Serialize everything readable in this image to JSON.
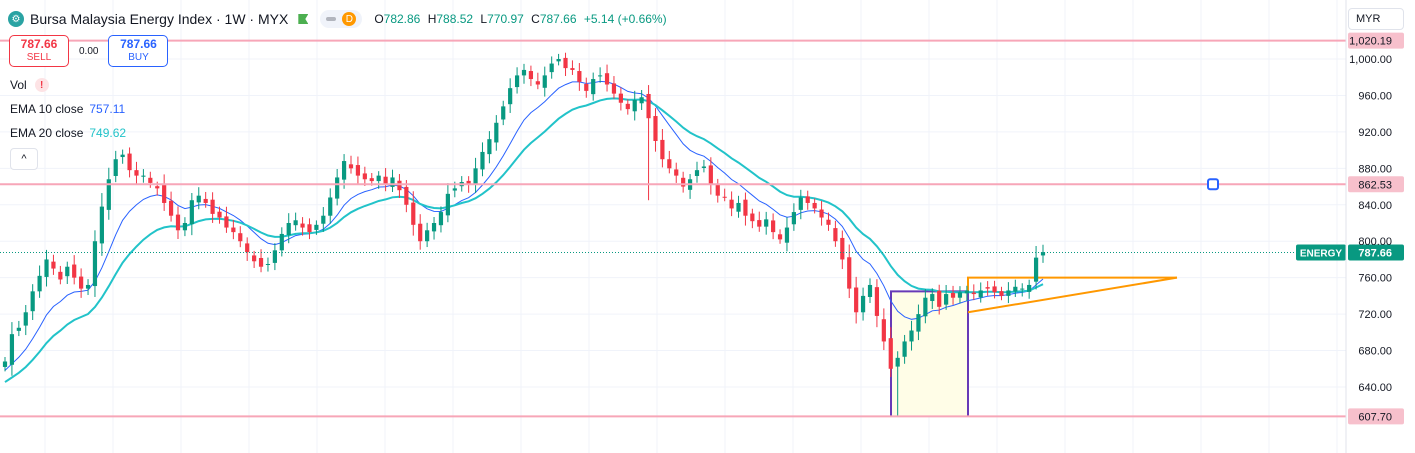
{
  "header": {
    "symbol_glyph": "⚙",
    "title": "Bursa Malaysia Energy Index · 1W · MYX",
    "pill_letter": "D",
    "open_label": "O",
    "open": "782.86",
    "high_label": "H",
    "high": "788.52",
    "low_label": "L",
    "low": "770.97",
    "close_label": "C",
    "close": "787.66",
    "change": "+5.14 (+0.66%)"
  },
  "trade": {
    "sell_price": "787.66",
    "sell_label": "SELL",
    "spread": "0.00",
    "buy_price": "787.66",
    "buy_label": "BUY"
  },
  "indicators": {
    "vol_label": "Vol",
    "vol_warning": "!",
    "ema10_label": "EMA 10 close",
    "ema10_value": "757.11",
    "ema20_label": "EMA 20 close",
    "ema20_value": "749.62",
    "collapse_glyph": "^"
  },
  "currency": "MYR",
  "colors": {
    "up": "#089981",
    "down": "#f23645",
    "ema10": "#2962ff",
    "ema20": "#22c3c9",
    "hline": "#f7a6b8",
    "triangle": "#ff9800",
    "box": "#673ab7",
    "box_fill": "#fffde7",
    "price_line": "#089981"
  },
  "chart_data": {
    "type": "candlestick",
    "yaxis_ticks": [
      640,
      680,
      720,
      760,
      800,
      840,
      880,
      920,
      960,
      1000
    ],
    "yaxis_tick_labels": [
      "640.00",
      "680.00",
      "720.00",
      "760.00",
      "800.00",
      "840.00",
      "880.00",
      "920.00",
      "960.00",
      "1,000.00"
    ],
    "ylim": [
      590,
      1035
    ],
    "horizontal_lines": [
      {
        "value": 1020.19,
        "label": "1,020.19"
      },
      {
        "value": 862.53,
        "label": "862.53"
      },
      {
        "value": 607.7,
        "label": "607.70"
      }
    ],
    "last_price": {
      "name": "ENERGY",
      "value": "787.66"
    },
    "closes": [
      668,
      698,
      705,
      722,
      745,
      762,
      780,
      770,
      758,
      772,
      760,
      748,
      752,
      800,
      838,
      868,
      890,
      895,
      878,
      872,
      872,
      864,
      858,
      842,
      828,
      812,
      820,
      845,
      850,
      842,
      830,
      826,
      815,
      810,
      800,
      788,
      778,
      772,
      775,
      790,
      808,
      820,
      823,
      815,
      810,
      818,
      828,
      848,
      870,
      888,
      880,
      872,
      868,
      866,
      872,
      862,
      870,
      856,
      840,
      818,
      800,
      812,
      820,
      832,
      852,
      858,
      865,
      862,
      880,
      898,
      912,
      930,
      948,
      968,
      982,
      988,
      978,
      972,
      982,
      995,
      1000,
      990,
      988,
      975,
      965,
      978,
      982,
      972,
      962,
      952,
      945,
      955,
      958,
      935,
      910,
      890,
      880,
      872,
      860,
      868,
      878,
      882,
      862,
      850,
      848,
      836,
      842,
      828,
      822,
      816,
      824,
      810,
      802,
      815,
      832,
      848,
      842,
      836,
      826,
      818,
      800,
      780,
      748,
      722,
      740,
      752,
      718,
      690,
      660,
      672,
      690,
      702,
      720,
      738,
      742,
      728,
      742,
      738,
      744,
      746,
      742,
      746,
      748,
      744,
      740,
      746,
      750,
      748,
      752,
      782,
      788
    ],
    "emas": [
      {
        "name": "EMA 10 close",
        "period": 10,
        "value_label": "757.11"
      },
      {
        "name": "EMA 20 close",
        "period": 20,
        "value_label": "749.62"
      }
    ],
    "x_start": 5,
    "x_step": 6.92
  }
}
